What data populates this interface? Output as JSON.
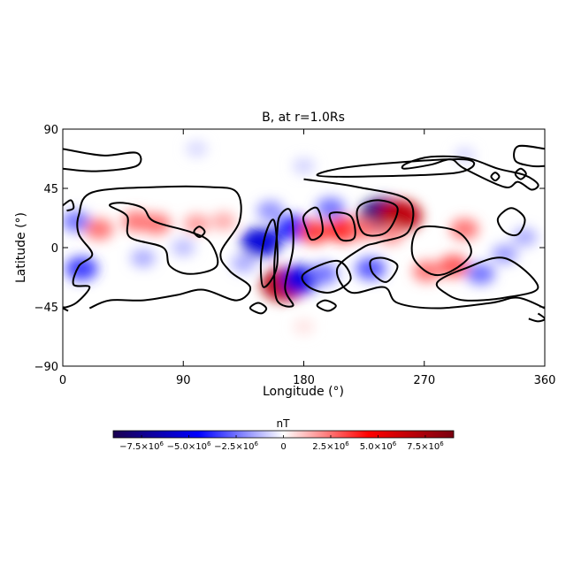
{
  "chart_data": {
    "type": "heatmap",
    "title": "B, at r=1.0Rs",
    "xlabel": "Longitude (°)",
    "ylabel": "Latitude (°)",
    "xlim": [
      0,
      360
    ],
    "ylim": [
      -90,
      90
    ],
    "x_ticks": [
      0,
      90,
      180,
      270,
      360
    ],
    "x_tick_labels": [
      "0",
      "90",
      "180",
      "270",
      "360"
    ],
    "y_ticks": [
      -90,
      -45,
      0,
      45,
      90
    ],
    "y_tick_labels": [
      "−90",
      "−45",
      "0",
      "45",
      "90"
    ],
    "colorbar": {
      "label": "nT",
      "range": [
        -9000000,
        9000000
      ],
      "ticks": [
        -7500000,
        -5000000,
        -2500000,
        0,
        2500000,
        5000000,
        7500000
      ],
      "tick_labels": [
        {
          "mantissa": "−7.5×10",
          "exp": "6"
        },
        {
          "mantissa": "−5.0×10",
          "exp": "6"
        },
        {
          "mantissa": "−2.5×10",
          "exp": "6"
        },
        {
          "mantissa": "0",
          "exp": ""
        },
        {
          "mantissa": "2.5×10",
          "exp": "6"
        },
        {
          "mantissa": "5.0×10",
          "exp": "6"
        },
        {
          "mantissa": "7.5×10",
          "exp": "6"
        }
      ],
      "colors": [
        "#1a0050",
        "#0000ff",
        "#ffffff",
        "#ff0000",
        "#7a0010"
      ]
    },
    "features": [
      {
        "lon": 240,
        "lat": 24,
        "value": -8000000
      },
      {
        "lon": 252,
        "lat": 24,
        "value": 6500000
      },
      {
        "lon": 165,
        "lat": -28,
        "value": 7000000
      },
      {
        "lon": 148,
        "lat": 4,
        "value": -5500000
      },
      {
        "lon": 178,
        "lat": -24,
        "value": -5000000
      },
      {
        "lon": 172,
        "lat": 15,
        "value": -4000000
      },
      {
        "lon": 188,
        "lat": 12,
        "value": 3500000
      },
      {
        "lon": 210,
        "lat": 14,
        "value": 4000000
      },
      {
        "lon": 225,
        "lat": 14,
        "value": 2500000
      },
      {
        "lon": 245,
        "lat": 10,
        "value": 2000000
      },
      {
        "lon": 230,
        "lat": -16,
        "value": -3000000
      },
      {
        "lon": 195,
        "lat": -20,
        "value": -2500000
      },
      {
        "lon": 272,
        "lat": -18,
        "value": 2500000
      },
      {
        "lon": 292,
        "lat": -14,
        "value": 3000000
      },
      {
        "lon": 300,
        "lat": 14,
        "value": 2500000
      },
      {
        "lon": 312,
        "lat": -20,
        "value": -2500000
      },
      {
        "lon": 330,
        "lat": -5,
        "value": -1800000
      },
      {
        "lon": 345,
        "lat": 8,
        "value": -1500000
      },
      {
        "lon": 14,
        "lat": -16,
        "value": -3500000
      },
      {
        "lon": 10,
        "lat": 20,
        "value": -2500000
      },
      {
        "lon": 27,
        "lat": 14,
        "value": 2500000
      },
      {
        "lon": 55,
        "lat": 20,
        "value": 2500000
      },
      {
        "lon": 70,
        "lat": 18,
        "value": 2500000
      },
      {
        "lon": 100,
        "lat": 18,
        "value": 1800000
      },
      {
        "lon": 120,
        "lat": 20,
        "value": 1500000
      },
      {
        "lon": 60,
        "lat": -8,
        "value": -1500000
      },
      {
        "lon": 90,
        "lat": 0,
        "value": -1200000
      },
      {
        "lon": 135,
        "lat": -12,
        "value": -1500000
      },
      {
        "lon": 155,
        "lat": 28,
        "value": -2000000
      },
      {
        "lon": 200,
        "lat": 30,
        "value": -2500000
      },
      {
        "lon": 180,
        "lat": 62,
        "value": -800000
      },
      {
        "lon": 100,
        "lat": 75,
        "value": -700000
      },
      {
        "lon": 300,
        "lat": 70,
        "value": -700000
      },
      {
        "lon": 180,
        "lat": -60,
        "value": 500000
      }
    ],
    "neutral_line_contours": [
      [
        [
          0,
          75
        ],
        [
          30,
          70
        ],
        [
          55,
          72
        ],
        [
          55,
          62
        ],
        [
          25,
          58
        ],
        [
          0,
          60
        ]
      ],
      [
        [
          360,
          75
        ],
        [
          340,
          77
        ],
        [
          338,
          66
        ],
        [
          350,
          62
        ],
        [
          360,
          62
        ]
      ],
      [
        [
          190,
          55
        ],
        [
          220,
          62
        ],
        [
          300,
          67
        ],
        [
          295,
          57
        ],
        [
          225,
          54
        ]
      ],
      [
        [
          255,
          60
        ],
        [
          275,
          63
        ],
        [
          290,
          67
        ],
        [
          300,
          60
        ],
        [
          330,
          46
        ],
        [
          340,
          50
        ],
        [
          350,
          44
        ],
        [
          355,
          48
        ],
        [
          345,
          55
        ],
        [
          325,
          60
        ],
        [
          302,
          68
        ],
        [
          275,
          69
        ],
        [
          257,
          64
        ]
      ],
      [
        [
          320,
          54
        ],
        [
          323,
          57
        ],
        [
          326,
          54
        ],
        [
          323,
          51
        ]
      ],
      [
        [
          338,
          56
        ],
        [
          342,
          60
        ],
        [
          346,
          56
        ],
        [
          342,
          52
        ]
      ],
      [
        [
          0,
          -46
        ],
        [
          10,
          -42
        ],
        [
          20,
          -30
        ],
        [
          8,
          -28
        ],
        [
          12,
          -14
        ],
        [
          22,
          -5
        ],
        [
          12,
          10
        ],
        [
          12,
          25
        ],
        [
          22,
          42
        ],
        [
          70,
          46
        ],
        [
          110,
          46
        ],
        [
          130,
          42
        ],
        [
          132,
          20
        ],
        [
          118,
          -4
        ],
        [
          125,
          -18
        ],
        [
          140,
          -30
        ],
        [
          130,
          -40
        ],
        [
          105,
          -32
        ],
        [
          85,
          -36
        ],
        [
          60,
          -40
        ],
        [
          35,
          -40
        ],
        [
          20,
          -46
        ]
      ],
      [
        [
          35,
          32
        ],
        [
          48,
          24
        ],
        [
          50,
          8
        ],
        [
          75,
          0
        ],
        [
          80,
          -14
        ],
        [
          95,
          -20
        ],
        [
          115,
          -14
        ],
        [
          110,
          4
        ],
        [
          95,
          12
        ],
        [
          68,
          20
        ],
        [
          60,
          30
        ],
        [
          45,
          34
        ]
      ],
      [
        [
          98,
          12
        ],
        [
          102,
          16
        ],
        [
          106,
          12
        ],
        [
          102,
          8
        ]
      ],
      [
        [
          180,
          -20
        ],
        [
          205,
          -10
        ],
        [
          215,
          -24
        ],
        [
          200,
          -34
        ],
        [
          184,
          -30
        ]
      ],
      [
        [
          180,
          52
        ],
        [
          220,
          46
        ],
        [
          258,
          36
        ],
        [
          258,
          12
        ],
        [
          236,
          4
        ],
        [
          224,
          0
        ],
        [
          205,
          -16
        ],
        [
          215,
          -34
        ],
        [
          240,
          -30
        ],
        [
          250,
          -42
        ],
        [
          280,
          -46
        ],
        [
          320,
          -42
        ],
        [
          340,
          -38
        ],
        [
          360,
          -46
        ]
      ],
      [
        [
          0,
          -46
        ],
        [
          4,
          -48
        ]
      ],
      [
        [
          158,
          20
        ],
        [
          160,
          -14
        ],
        [
          150,
          -30
        ],
        [
          148,
          -10
        ],
        [
          152,
          12
        ]
      ],
      [
        [
          162,
          24
        ],
        [
          170,
          28
        ],
        [
          172,
          0
        ],
        [
          166,
          -30
        ],
        [
          172,
          -44
        ],
        [
          160,
          -40
        ],
        [
          158,
          -14
        ],
        [
          160,
          10
        ]
      ],
      [
        [
          180,
          24
        ],
        [
          190,
          30
        ],
        [
          194,
          12
        ],
        [
          186,
          6
        ],
        [
          182,
          14
        ]
      ],
      [
        [
          200,
          26
        ],
        [
          215,
          24
        ],
        [
          218,
          8
        ],
        [
          208,
          6
        ],
        [
          202,
          16
        ]
      ],
      [
        [
          222,
          32
        ],
        [
          236,
          36
        ],
        [
          250,
          30
        ],
        [
          242,
          12
        ],
        [
          226,
          10
        ],
        [
          220,
          22
        ]
      ],
      [
        [
          230,
          -10
        ],
        [
          240,
          -8
        ],
        [
          250,
          -14
        ],
        [
          242,
          -26
        ],
        [
          232,
          -20
        ]
      ],
      [
        [
          262,
          8
        ],
        [
          270,
          16
        ],
        [
          295,
          12
        ],
        [
          305,
          -4
        ],
        [
          290,
          -18
        ],
        [
          275,
          -20
        ],
        [
          262,
          -8
        ]
      ],
      [
        [
          280,
          -26
        ],
        [
          300,
          -16
        ],
        [
          330,
          -8
        ],
        [
          355,
          -30
        ],
        [
          330,
          -38
        ],
        [
          300,
          -40
        ],
        [
          285,
          -34
        ]
      ],
      [
        [
          325,
          22
        ],
        [
          335,
          30
        ],
        [
          345,
          22
        ],
        [
          340,
          10
        ],
        [
          330,
          12
        ]
      ],
      [
        [
          140,
          -46
        ],
        [
          148,
          -50
        ],
        [
          152,
          -46
        ],
        [
          146,
          -42
        ]
      ],
      [
        [
          190,
          -44
        ],
        [
          198,
          -48
        ],
        [
          204,
          -44
        ],
        [
          196,
          -40
        ]
      ],
      [
        [
          348,
          -54
        ],
        [
          355,
          -56
        ],
        [
          360,
          -54
        ],
        [
          355,
          -50
        ]
      ],
      [
        [
          0,
          32
        ],
        [
          6,
          36
        ],
        [
          8,
          30
        ],
        [
          3,
          28
        ]
      ]
    ]
  }
}
